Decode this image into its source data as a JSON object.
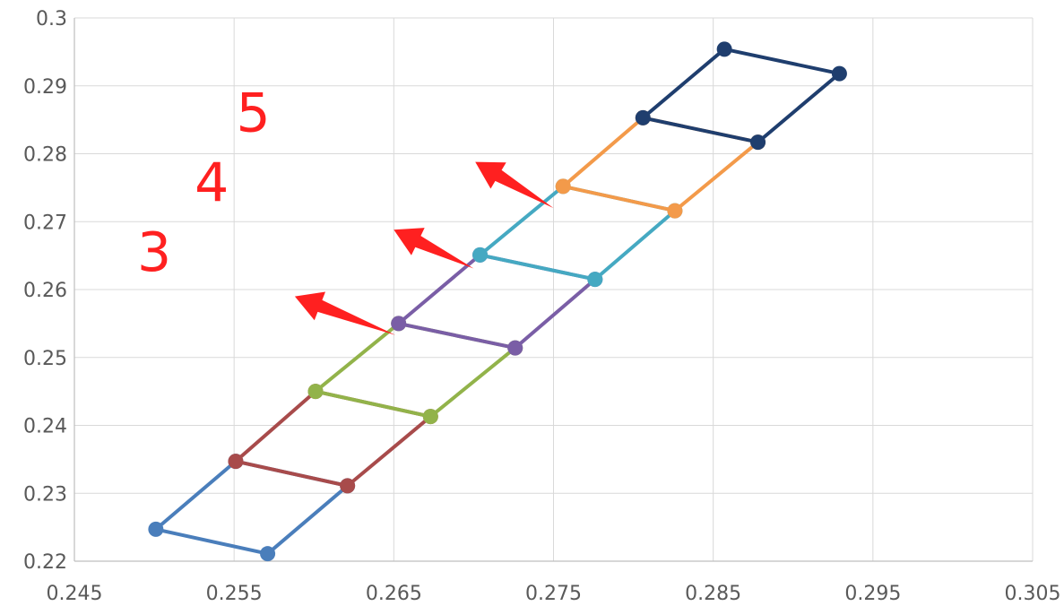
{
  "chart_data": {
    "type": "scatter",
    "title": "",
    "xlabel": "",
    "ylabel": "",
    "xlim": [
      0.245,
      0.305
    ],
    "ylim": [
      0.22,
      0.3
    ],
    "x_ticks": [
      0.245,
      0.255,
      0.265,
      0.275,
      0.285,
      0.295,
      0.305
    ],
    "y_ticks": [
      0.22,
      0.23,
      0.24,
      0.25,
      0.26,
      0.27,
      0.28,
      0.29,
      0.3
    ],
    "x_tick_labels": [
      "0.245",
      "0.255",
      "0.265",
      "0.275",
      "0.285",
      "0.295",
      "0.305"
    ],
    "y_tick_labels": [
      "0.22",
      "0.23",
      "0.24",
      "0.25",
      "0.26",
      "0.27",
      "0.28",
      "0.29",
      "0.3"
    ],
    "grid": true,
    "legend": "none",
    "series": [
      {
        "color": "#4a7ebb",
        "points": [
          [
            0.2501,
            0.2247
          ],
          [
            0.2571,
            0.2211
          ],
          [
            0.2621,
            0.2311
          ],
          [
            0.2551,
            0.2347
          ],
          [
            0.2501,
            0.2247
          ]
        ]
      },
      {
        "color": "#a84b4b",
        "points": [
          [
            0.2551,
            0.2347
          ],
          [
            0.2621,
            0.2311
          ],
          [
            0.2673,
            0.2413
          ],
          [
            0.2601,
            0.245
          ],
          [
            0.2551,
            0.2347
          ]
        ]
      },
      {
        "color": "#92b34a",
        "points": [
          [
            0.2601,
            0.245
          ],
          [
            0.2673,
            0.2413
          ],
          [
            0.2726,
            0.2514
          ],
          [
            0.2653,
            0.255
          ],
          [
            0.2601,
            0.245
          ]
        ]
      },
      {
        "color": "#7a5ea6",
        "points": [
          [
            0.2653,
            0.255
          ],
          [
            0.2726,
            0.2514
          ],
          [
            0.2776,
            0.2615
          ],
          [
            0.2704,
            0.2651
          ],
          [
            0.2653,
            0.255
          ]
        ]
      },
      {
        "color": "#45a9c2",
        "points": [
          [
            0.2704,
            0.2651
          ],
          [
            0.2776,
            0.2615
          ],
          [
            0.2826,
            0.2716
          ],
          [
            0.2756,
            0.2752
          ],
          [
            0.2704,
            0.2651
          ]
        ]
      },
      {
        "color": "#f39a4a",
        "points": [
          [
            0.2756,
            0.2752
          ],
          [
            0.2826,
            0.2716
          ],
          [
            0.2878,
            0.2817
          ],
          [
            0.2806,
            0.2853
          ],
          [
            0.2756,
            0.2752
          ]
        ]
      },
      {
        "color": "#1f3e6e",
        "points": [
          [
            0.2806,
            0.2853
          ],
          [
            0.2878,
            0.2817
          ],
          [
            0.2929,
            0.2918
          ],
          [
            0.2857,
            0.2954
          ],
          [
            0.2806,
            0.2853
          ]
        ]
      }
    ],
    "annotations": [
      {
        "text": "3",
        "x": 0.25,
        "y": 0.2628,
        "arrow_from": [
          0.2651,
          0.2533
        ],
        "arrow_to": [
          0.2588,
          0.259
        ]
      },
      {
        "text": "4",
        "x": 0.2536,
        "y": 0.273,
        "arrow_from": [
          0.27,
          0.2631
        ],
        "arrow_to": [
          0.265,
          0.2688
        ]
      },
      {
        "text": "5",
        "x": 0.2562,
        "y": 0.2833,
        "arrow_from": [
          0.275,
          0.272
        ],
        "arrow_to": [
          0.2701,
          0.2788
        ]
      }
    ],
    "marker_color": "#ff2020"
  }
}
